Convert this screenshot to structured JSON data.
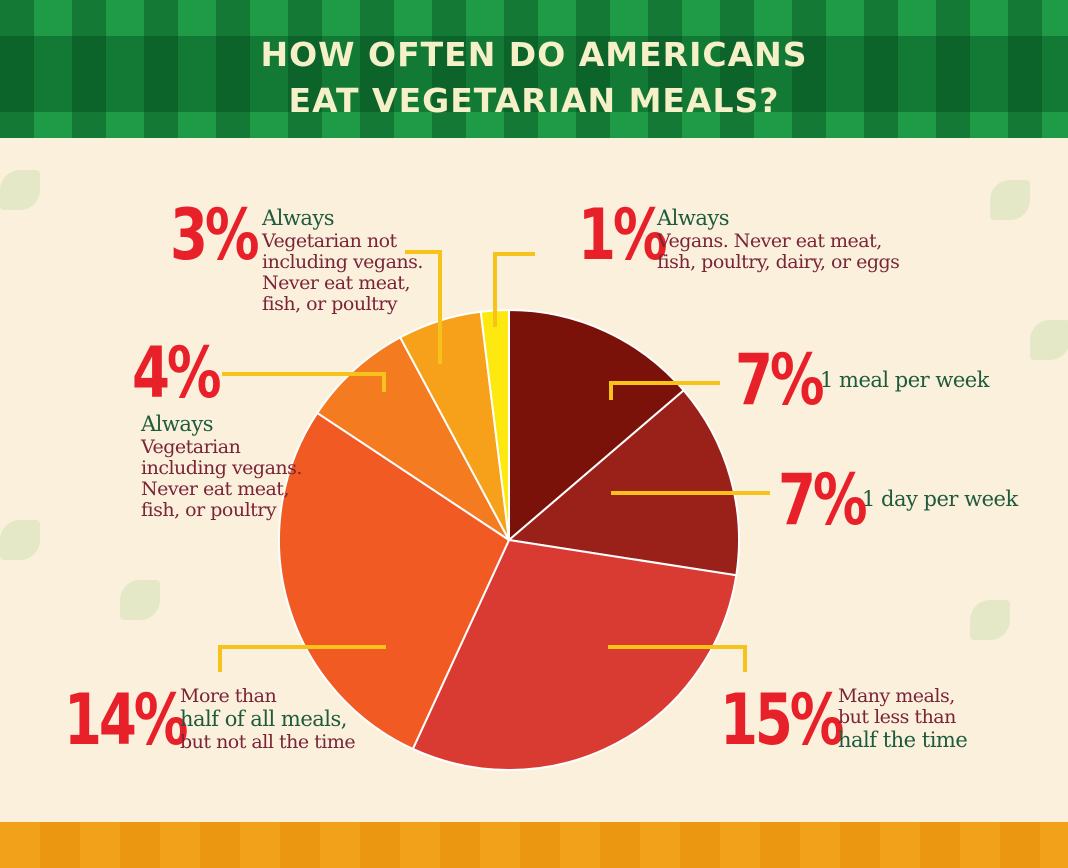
{
  "title": {
    "line1": "HOW OFTEN DO AMERICANS",
    "line2": "EAT VEGETARIAN MEALS?"
  },
  "colors": {
    "banner": "#137a35",
    "background": "#fbf0dc",
    "percent": "#e8202a",
    "heading_text": "#1e5a3c",
    "body_text": "#7a2438",
    "leader": "#f7c21a"
  },
  "chart_data": {
    "type": "pie",
    "title": "HOW OFTEN DO AMERICANS EAT VEGETARIAN MEALS?",
    "start": "12 o'clock, clockwise",
    "slices": [
      {
        "label": "1 meal per week",
        "value": 7,
        "display": "7%",
        "color": "#7a1209"
      },
      {
        "label": "1 day per week",
        "value": 7,
        "display": "7%",
        "color": "#9a201a"
      },
      {
        "label": "Many meals, but less than half the time",
        "value": 15,
        "display": "15%",
        "color": "#d93a32"
      },
      {
        "label": "More than half of all meals, but not all the time",
        "value": 14,
        "display": "14%",
        "color": "#f15a22"
      },
      {
        "label": "Always - Vegetarian including vegans. Never eat meat, fish, or poultry",
        "value": 4,
        "display": "4%",
        "color": "#f47b20"
      },
      {
        "label": "Always - Vegetarian not including vegans. Never eat meat, fish, or poultry",
        "value": 3,
        "display": "3%",
        "color": "#f7a11b"
      },
      {
        "label": "Always - Vegans. Never eat meat, fish, poultry, dairy, or eggs",
        "value": 1,
        "display": "1%",
        "color": "#fde910"
      }
    ]
  },
  "labels": {
    "meal_week": {
      "pct": "7%",
      "text": "1 meal per week"
    },
    "day_week": {
      "pct": "7%",
      "text": "1 day per week"
    },
    "many": {
      "pct": "15%",
      "l1": "Many meals,",
      "l2": "but less than",
      "l3": "half the time"
    },
    "more_half": {
      "pct": "14%",
      "l1": "More than",
      "l2": "half of all meals,",
      "l3": "but not all the time"
    },
    "veg_incl": {
      "pct": "4%",
      "head": "Always",
      "l1": "Vegetarian",
      "l2": "including vegans.",
      "l3": "Never eat meat,",
      "l4": "fish, or poultry"
    },
    "veg_not": {
      "pct": "3%",
      "head": "Always",
      "l1": "Vegetarian not",
      "l2": "including vegans.",
      "l3": "Never eat meat,",
      "l4": "fish, or poultry"
    },
    "vegan": {
      "pct": "1%",
      "head": "Always",
      "l1": "Vegans. Never eat meat,",
      "l2": "fish, poultry, dairy, or eggs"
    }
  }
}
